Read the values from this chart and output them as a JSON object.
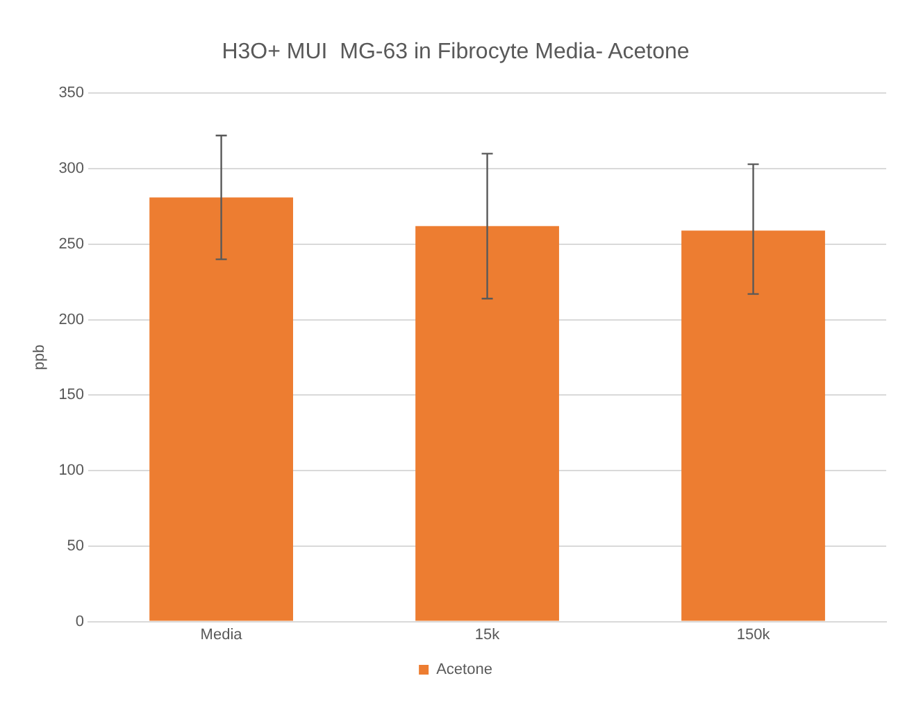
{
  "chart_data": {
    "type": "bar",
    "title": "H3O+ MUI  MG-63 in Fibrocyte Media- Acetone",
    "ylabel": "ppb",
    "categories": [
      "Media",
      "15k",
      "150k"
    ],
    "series": [
      {
        "name": "Acetone",
        "color": "#ed7d31",
        "values": [
          281,
          262,
          259
        ],
        "errors": [
          [
            240,
            322
          ],
          [
            214,
            310
          ],
          [
            217,
            303
          ]
        ]
      }
    ],
    "ylim": [
      0,
      350
    ],
    "yticks": [
      0,
      50,
      100,
      150,
      200,
      250,
      300,
      350
    ],
    "grid": "y",
    "legend": "bottom"
  }
}
